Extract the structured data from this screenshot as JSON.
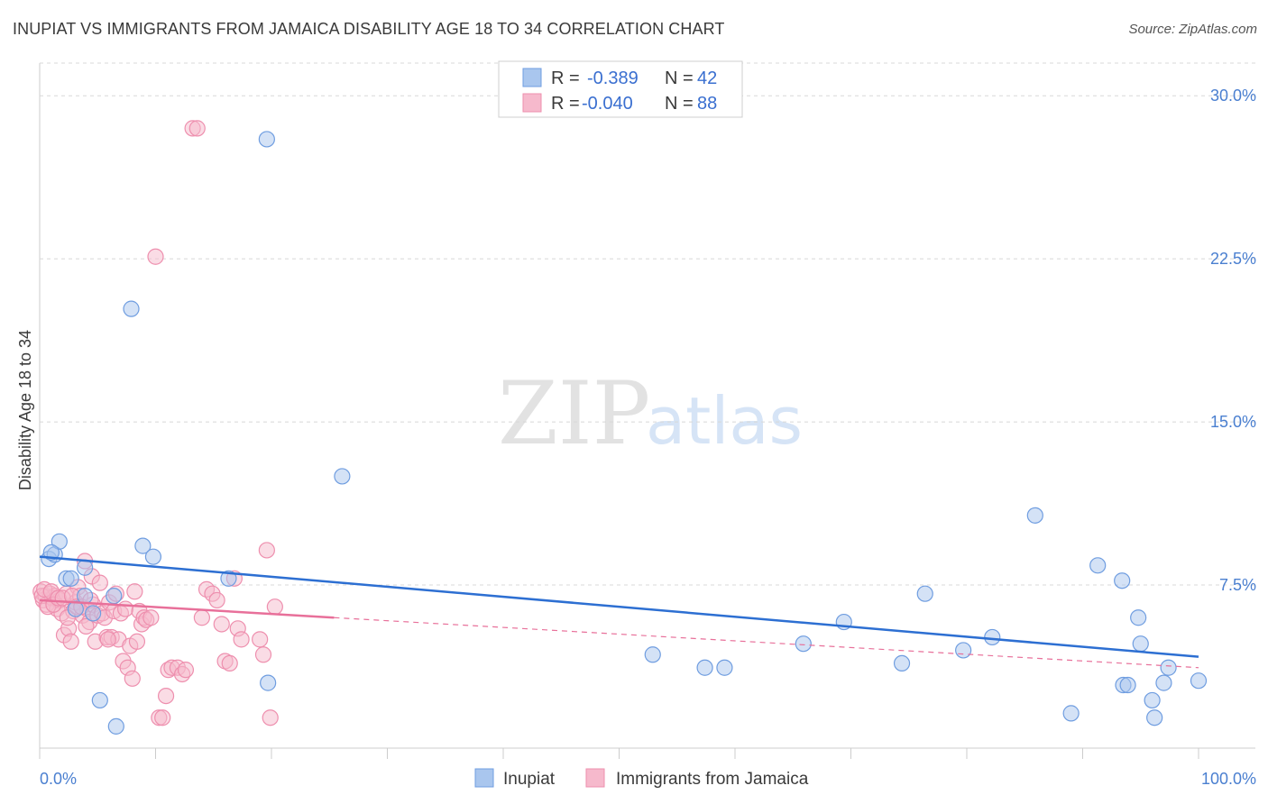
{
  "title": "INUPIAT VS IMMIGRANTS FROM JAMAICA DISABILITY AGE 18 TO 34 CORRELATION CHART",
  "source": "Source: ZipAtlas.com",
  "watermark": {
    "zip": "ZIP",
    "atlas": "atlas"
  },
  "colors": {
    "blue_fill": "#a9c6ee",
    "blue_stroke": "#6f9de0",
    "blue_line": "#2d6fd2",
    "pink_fill": "#f6b9cc",
    "pink_stroke": "#ee8fae",
    "pink_line": "#e8709a",
    "tick_text": "#4a7fd0",
    "grid": "#d8d8d8"
  },
  "legend": {
    "rows": [
      {
        "r_label": "R =",
        "r_value": "-0.389",
        "n_label": "N =",
        "n_value": "42"
      },
      {
        "r_label": "R =",
        "r_value": "-0.040",
        "n_label": "N =",
        "n_value": "88"
      }
    ]
  },
  "chart_data": {
    "type": "scatter",
    "title": "INUPIAT VS IMMIGRANTS FROM JAMAICA DISABILITY AGE 18 TO 34 CORRELATION CHART",
    "xlabel": "",
    "ylabel": "Disability Age 18 to 34",
    "xlim": [
      0,
      100
    ],
    "ylim": [
      0,
      31.5
    ],
    "x_tick_labels": [
      "0.0%",
      "100.0%"
    ],
    "y_ticks": [
      7.5,
      15.0,
      22.5,
      30.0
    ],
    "y_tick_labels": [
      "7.5%",
      "15.0%",
      "22.5%",
      "30.0%"
    ],
    "legend_position": "top-center",
    "series": [
      {
        "name": "Inupiat",
        "color": "blue",
        "r": -0.389,
        "n": 42,
        "trend": {
          "x": [
            0,
            100
          ],
          "y": [
            8.8,
            4.2
          ],
          "dashed_extension": null
        },
        "points": [
          [
            0.8,
            8.7
          ],
          [
            1.3,
            8.9
          ],
          [
            1.7,
            9.5
          ],
          [
            2.3,
            7.8
          ],
          [
            2.7,
            7.8
          ],
          [
            3.1,
            6.4
          ],
          [
            3.9,
            7.0
          ],
          [
            4.6,
            6.2
          ],
          [
            5.2,
            2.2
          ],
          [
            6.4,
            7.0
          ],
          [
            6.6,
            1.0
          ],
          [
            7.9,
            20.2
          ],
          [
            8.9,
            9.3
          ],
          [
            9.8,
            8.8
          ],
          [
            16.3,
            7.8
          ],
          [
            19.6,
            28.0
          ],
          [
            19.7,
            3.0
          ],
          [
            26.1,
            12.5
          ],
          [
            52.9,
            4.3
          ],
          [
            57.4,
            3.7
          ],
          [
            59.1,
            3.7
          ],
          [
            65.9,
            4.8
          ],
          [
            69.4,
            5.8
          ],
          [
            74.4,
            3.9
          ],
          [
            76.4,
            7.1
          ],
          [
            79.7,
            4.5
          ],
          [
            82.2,
            5.1
          ],
          [
            85.9,
            10.7
          ],
          [
            89.0,
            1.6
          ],
          [
            91.3,
            8.4
          ],
          [
            93.5,
            2.9
          ],
          [
            93.4,
            7.7
          ],
          [
            93.9,
            2.9
          ],
          [
            94.8,
            6.0
          ],
          [
            95.0,
            4.8
          ],
          [
            96.0,
            2.2
          ],
          [
            96.2,
            1.4
          ],
          [
            97.0,
            3.0
          ],
          [
            97.4,
            3.7
          ],
          [
            100.0,
            3.1
          ],
          [
            3.9,
            8.3
          ],
          [
            1.0,
            9.0
          ]
        ]
      },
      {
        "name": "Immigrants from Jamaica",
        "color": "pink",
        "r": -0.04,
        "n": 88,
        "trend": {
          "x": [
            0,
            25.4
          ],
          "y": [
            6.8,
            6.0
          ],
          "dashed_extension": {
            "x": [
              25.4,
              100
            ],
            "y": [
              6.0,
              3.7
            ]
          }
        },
        "points": [
          [
            0.1,
            7.2
          ],
          [
            0.3,
            6.8
          ],
          [
            0.5,
            7.0
          ],
          [
            0.6,
            6.6
          ],
          [
            0.9,
            7.1
          ],
          [
            1.1,
            6.9
          ],
          [
            1.3,
            7.0
          ],
          [
            1.5,
            6.4
          ],
          [
            1.7,
            6.8
          ],
          [
            1.9,
            6.2
          ],
          [
            2.1,
            5.2
          ],
          [
            2.3,
            7.1
          ],
          [
            2.5,
            5.5
          ],
          [
            2.7,
            4.9
          ],
          [
            2.9,
            6.3
          ],
          [
            3.1,
            6.7
          ],
          [
            3.3,
            7.4
          ],
          [
            3.5,
            7.0
          ],
          [
            3.7,
            6.1
          ],
          [
            3.9,
            8.6
          ],
          [
            4.1,
            6.4
          ],
          [
            4.3,
            5.8
          ],
          [
            4.5,
            7.9
          ],
          [
            4.6,
            6.6
          ],
          [
            4.8,
            4.9
          ],
          [
            5.0,
            6.1
          ],
          [
            5.2,
            7.6
          ],
          [
            5.4,
            6.2
          ],
          [
            5.6,
            6.0
          ],
          [
            5.8,
            5.1
          ],
          [
            6.0,
            6.7
          ],
          [
            6.2,
            5.1
          ],
          [
            6.4,
            6.3
          ],
          [
            6.6,
            7.1
          ],
          [
            6.8,
            5.0
          ],
          [
            7.0,
            6.2
          ],
          [
            7.2,
            4.0
          ],
          [
            7.4,
            6.4
          ],
          [
            7.6,
            3.7
          ],
          [
            7.8,
            4.7
          ],
          [
            8.0,
            3.2
          ],
          [
            8.2,
            7.2
          ],
          [
            8.4,
            4.9
          ],
          [
            8.6,
            6.3
          ],
          [
            8.8,
            5.7
          ],
          [
            9.0,
            6.0
          ],
          [
            9.2,
            5.9
          ],
          [
            9.6,
            6.0
          ],
          [
            10.0,
            22.6
          ],
          [
            10.3,
            1.4
          ],
          [
            10.6,
            1.4
          ],
          [
            10.9,
            2.4
          ],
          [
            11.1,
            3.6
          ],
          [
            11.4,
            3.7
          ],
          [
            11.9,
            3.7
          ],
          [
            12.3,
            3.4
          ],
          [
            12.6,
            3.6
          ],
          [
            13.2,
            28.5
          ],
          [
            13.6,
            28.5
          ],
          [
            14.0,
            6.0
          ],
          [
            14.4,
            7.3
          ],
          [
            14.9,
            7.1
          ],
          [
            15.3,
            6.8
          ],
          [
            15.7,
            5.7
          ],
          [
            16.0,
            4.0
          ],
          [
            16.4,
            3.9
          ],
          [
            16.8,
            7.8
          ],
          [
            17.1,
            5.5
          ],
          [
            17.4,
            5.0
          ],
          [
            19.0,
            5.0
          ],
          [
            19.3,
            4.3
          ],
          [
            19.6,
            9.1
          ],
          [
            19.9,
            1.4
          ],
          [
            20.3,
            6.5
          ],
          [
            0.2,
            7.0
          ],
          [
            0.4,
            7.3
          ],
          [
            0.7,
            6.5
          ],
          [
            1.0,
            7.2
          ],
          [
            1.2,
            6.6
          ],
          [
            1.6,
            6.9
          ],
          [
            2.0,
            6.9
          ],
          [
            2.4,
            6.0
          ],
          [
            2.8,
            7.0
          ],
          [
            3.2,
            6.5
          ],
          [
            3.6,
            6.5
          ],
          [
            4.0,
            5.6
          ],
          [
            4.4,
            6.8
          ],
          [
            5.9,
            5.0
          ]
        ]
      }
    ]
  }
}
